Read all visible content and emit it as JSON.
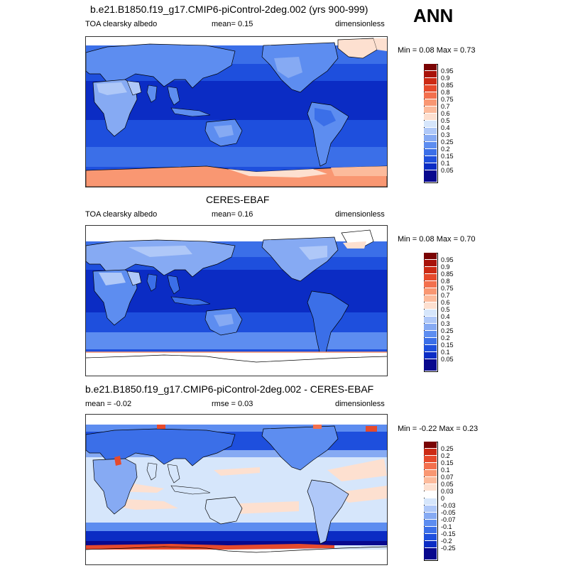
{
  "season": "ANN",
  "colors": {
    "seq": [
      "#08088e",
      "#0b2cc4",
      "#1e4fdd",
      "#3b6fe8",
      "#5d8df0",
      "#86aaf3",
      "#afc8f8",
      "#d6e6fb",
      "#fde0d0",
      "#fcbb9c",
      "#f99772",
      "#f3704e",
      "#e64a2c",
      "#cc2a14",
      "#a8120a",
      "#7a0404"
    ],
    "diff": [
      "#08088e",
      "#0b2cc4",
      "#1e4fdd",
      "#3b6fe8",
      "#5d8df0",
      "#86aaf3",
      "#afc8f8",
      "#d6e6fb",
      "#ffffff",
      "#fde0d0",
      "#fcbb9c",
      "#f99772",
      "#f3704e",
      "#e64a2c",
      "#cc2a14",
      "#7a0404"
    ]
  },
  "panels": [
    {
      "title": "b.e21.B1850.f19_g17.CMIP6-piControl-2deg.002 (yrs 900-999)",
      "left_label": "TOA clearsky albedo",
      "mean_label": "mean=   0.15",
      "units": "dimensionless",
      "minmax": "Min =   0.08 Max =   0.73",
      "colorbar": [
        "0.95",
        "0.9",
        "0.85",
        "0.8",
        "0.75",
        "0.7",
        "0.6",
        "0.5",
        "0.4",
        "0.3",
        "0.25",
        "0.2",
        "0.15",
        "0.1",
        "0.05"
      ]
    },
    {
      "title": "CERES-EBAF",
      "left_label": "TOA clearsky albedo",
      "mean_label": "mean=   0.16",
      "units": "dimensionless",
      "minmax": "Min =   0.08 Max =   0.70",
      "colorbar": [
        "0.95",
        "0.9",
        "0.85",
        "0.8",
        "0.75",
        "0.7",
        "0.6",
        "0.5",
        "0.4",
        "0.3",
        "0.25",
        "0.2",
        "0.15",
        "0.1",
        "0.05"
      ]
    },
    {
      "title": "b.e21.B1850.f19_g17.CMIP6-piControl-2deg.002 - CERES-EBAF",
      "left_label": "mean =  -0.02",
      "mean_label": "rmse =   0.03",
      "units": "dimensionless",
      "minmax": "Min =  -0.22 Max =   0.23",
      "colorbar": [
        "0.25",
        "0.2",
        "0.15",
        "0.1",
        "0.07",
        "0.05",
        "0.03",
        "0",
        "-0.03",
        "-0.05",
        "-0.07",
        "-0.1",
        "-0.15",
        "-0.2",
        "-0.25"
      ]
    }
  ]
}
